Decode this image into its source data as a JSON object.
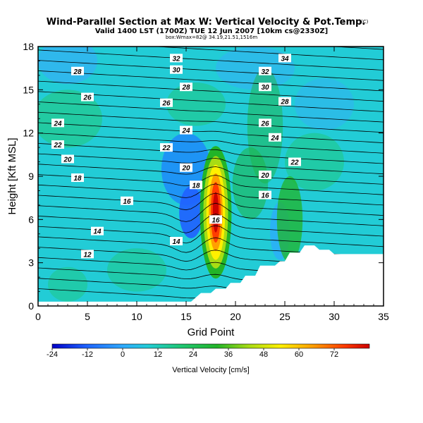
{
  "chart_data": {
    "type": "heatmap",
    "title": "Wind-Parallel Section at Max W: Vertical Velocity & Pot.Temp.",
    "title_mark": "(C)",
    "subtitle_lines": [
      "Valid 1400 LST (1700Z) TUE 12 Jun 2007 [10km cs@2330Z]",
      "box:Wmax=82@ 34.19,21.51,1516m"
    ],
    "xlabel": "Grid Point",
    "ylabel": "Height [Kft MSL]",
    "xlim": [
      0,
      35
    ],
    "ylim": [
      0,
      18
    ],
    "xticks": [
      0,
      5,
      10,
      15,
      20,
      25,
      30,
      35
    ],
    "yticks": [
      0,
      3,
      6,
      9,
      12,
      15,
      18
    ],
    "colorbar": {
      "label": "Vertical Velocity [cm/s]",
      "ticks": [
        -24,
        -12,
        0,
        12,
        24,
        36,
        48,
        60,
        72
      ],
      "range": [
        -24,
        84
      ]
    },
    "max_updraft": {
      "x": 18,
      "y": 6.5,
      "value": 82
    },
    "terrain": [
      [
        0,
        0.3
      ],
      [
        14,
        0.3
      ],
      [
        15.5,
        0.3
      ],
      [
        16.5,
        0.9
      ],
      [
        17.5,
        0.9
      ],
      [
        18,
        1.2
      ],
      [
        19,
        1.2
      ],
      [
        19.5,
        1.6
      ],
      [
        20.5,
        1.6
      ],
      [
        21,
        2.1
      ],
      [
        22,
        2.1
      ],
      [
        22.5,
        2.8
      ],
      [
        24,
        2.8
      ],
      [
        24.5,
        3.1
      ],
      [
        25,
        3.1
      ],
      [
        25.5,
        3.7
      ],
      [
        26.5,
        3.7
      ],
      [
        27,
        4.2
      ],
      [
        28,
        4.2
      ],
      [
        28.5,
        3.9
      ],
      [
        29.5,
        3.9
      ],
      [
        30,
        3.6
      ],
      [
        35,
        3.6
      ]
    ],
    "isentrope_labels": [
      {
        "text": "32",
        "x": 14,
        "y": 17.2
      },
      {
        "text": "34",
        "x": 25,
        "y": 17.2
      },
      {
        "text": "28",
        "x": 4,
        "y": 16.3
      },
      {
        "text": "30",
        "x": 14,
        "y": 16.4
      },
      {
        "text": "32",
        "x": 23,
        "y": 16.3
      },
      {
        "text": "26",
        "x": 5,
        "y": 14.5
      },
      {
        "text": "28",
        "x": 15,
        "y": 15.2
      },
      {
        "text": "30",
        "x": 23,
        "y": 15.2
      },
      {
        "text": "26",
        "x": 13,
        "y": 14.1
      },
      {
        "text": "28",
        "x": 25,
        "y": 14.2
      },
      {
        "text": "24",
        "x": 2,
        "y": 12.7
      },
      {
        "text": "26",
        "x": 23,
        "y": 12.7
      },
      {
        "text": "24",
        "x": 15,
        "y": 12.2
      },
      {
        "text": "24",
        "x": 24,
        "y": 11.7
      },
      {
        "text": "22",
        "x": 2,
        "y": 11.2
      },
      {
        "text": "22",
        "x": 13,
        "y": 11.0
      },
      {
        "text": "22",
        "x": 26,
        "y": 10.0
      },
      {
        "text": "20",
        "x": 3,
        "y": 10.2
      },
      {
        "text": "20",
        "x": 15,
        "y": 9.6
      },
      {
        "text": "20",
        "x": 23,
        "y": 9.1
      },
      {
        "text": "18",
        "x": 4,
        "y": 8.9
      },
      {
        "text": "18",
        "x": 16,
        "y": 8.4
      },
      {
        "text": "16",
        "x": 9,
        "y": 7.3
      },
      {
        "text": "16",
        "x": 23,
        "y": 7.7
      },
      {
        "text": "16",
        "x": 18,
        "y": 6.0
      },
      {
        "text": "14",
        "x": 6,
        "y": 5.2
      },
      {
        "text": "14",
        "x": 14,
        "y": 4.5
      },
      {
        "text": "12",
        "x": 5,
        "y": 3.6
      }
    ]
  }
}
